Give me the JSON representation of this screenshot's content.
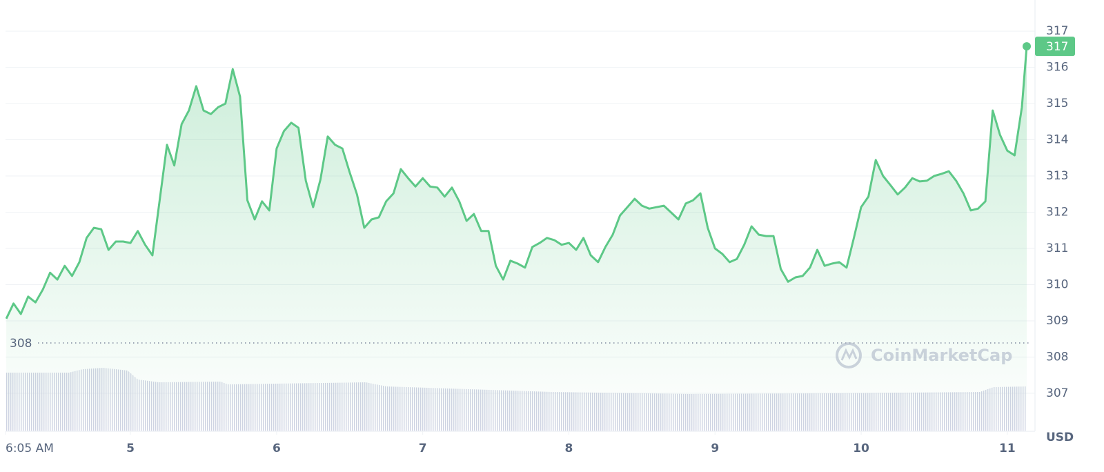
{
  "chart_data": {
    "type": "line",
    "x": [
      4.15,
      4.2,
      4.25,
      4.3,
      4.35,
      4.4,
      4.45,
      4.5,
      4.55,
      4.6,
      4.65,
      4.7,
      4.75,
      4.8,
      4.85,
      4.9,
      4.95,
      5,
      5.05,
      5.1,
      5.15,
      5.2,
      5.25,
      5.3,
      5.35,
      5.4,
      5.45,
      5.5,
      5.55,
      5.6,
      5.65,
      5.7,
      5.75,
      5.8,
      5.85,
      5.9,
      5.95,
      6,
      6.05,
      6.1,
      6.15,
      6.2,
      6.25,
      6.3,
      6.35,
      6.4,
      6.45,
      6.5,
      6.55,
      6.6,
      6.65,
      6.7,
      6.75,
      6.8,
      6.85,
      6.9,
      6.95,
      7,
      7.05,
      7.1,
      7.15,
      7.2,
      7.25,
      7.3,
      7.35,
      7.4,
      7.45,
      7.5,
      7.55,
      7.6,
      7.65,
      7.7,
      7.75,
      7.8,
      7.85,
      7.9,
      7.95,
      8,
      8.05,
      8.1,
      8.15,
      8.2,
      8.25,
      8.3,
      8.35,
      8.4,
      8.45,
      8.5,
      8.55,
      8.6,
      8.65,
      8.7,
      8.75,
      8.8,
      8.85,
      8.9,
      8.95,
      9,
      9.05,
      9.1,
      9.15,
      9.2,
      9.25,
      9.3,
      9.35,
      9.4,
      9.45,
      9.5,
      9.55,
      9.6,
      9.65,
      9.7,
      9.75,
      9.8,
      9.85,
      9.9,
      9.95,
      10,
      10.05,
      10.1,
      10.15,
      10.2,
      10.25,
      10.3,
      10.35,
      10.4,
      10.45,
      10.5,
      10.55,
      10.6,
      10.65,
      10.7,
      10.75,
      10.8,
      10.85,
      10.9,
      10.95,
      11,
      11.05,
      11.1,
      11.133
    ],
    "series": [
      {
        "color": "#5dc887",
        "values": [
          309.06,
          309.48,
          309.19,
          309.67,
          309.51,
          309.86,
          310.33,
          310.14,
          310.52,
          310.24,
          310.62,
          311.29,
          311.57,
          311.53,
          310.96,
          311.19,
          311.19,
          311.15,
          311.48,
          311.1,
          310.81,
          312.33,
          313.86,
          313.29,
          314.43,
          314.81,
          315.48,
          314.81,
          314.71,
          314.9,
          315,
          315.95,
          315.19,
          312.33,
          311.8,
          312.3,
          312.05,
          313.76,
          314.24,
          314.47,
          314.33,
          312.87,
          312.14,
          312.9,
          314.09,
          313.86,
          313.76,
          313.1,
          312.49,
          311.57,
          311.8,
          311.86,
          312.3,
          312.52,
          313.19,
          312.94,
          312.71,
          312.94,
          312.71,
          312.68,
          312.43,
          312.68,
          312.3,
          311.76,
          311.95,
          311.48,
          311.48,
          310.52,
          310.14,
          310.66,
          310.58,
          310.47,
          311.04,
          311.15,
          311.29,
          311.23,
          311.1,
          311.15,
          310.96,
          311.29,
          310.81,
          310.62,
          311.04,
          311.38,
          311.91,
          312.14,
          312.37,
          312.18,
          312.1,
          312.14,
          312.18,
          311.99,
          311.8,
          312.24,
          312.33,
          312.52,
          311.57,
          311,
          310.85,
          310.62,
          310.71,
          311.1,
          311.61,
          311.38,
          311.34,
          311.34,
          310.43,
          310.08,
          310.2,
          310.24,
          310.47,
          310.96,
          310.52,
          310.58,
          310.62,
          310.47,
          311.29,
          312.14,
          312.43,
          313.44,
          313,
          312.75,
          312.49,
          312.68,
          312.94,
          312.85,
          312.87,
          313,
          313.06,
          313.13,
          312.87,
          312.52,
          312.05,
          312.1,
          312.3,
          314.81,
          314.14,
          313.7,
          313.57,
          314.9,
          316.58
        ]
      }
    ],
    "xlim": [
      4.145,
      11.133
    ],
    "xticks": [
      {
        "value": 4.145,
        "label": "6:05 AM"
      },
      5,
      6,
      7,
      8,
      9,
      10,
      11
    ],
    "ylim": [
      305.95,
      317.86
    ],
    "yticks": [
      307,
      308,
      309,
      310,
      311,
      312,
      313,
      314,
      315,
      316,
      317
    ],
    "grid": true,
    "axis_unit": "USD",
    "open_price": {
      "value": 308.39,
      "label": "308"
    },
    "last_price": {
      "value": 316.58,
      "label": "317"
    },
    "watermark": "CoinMarketCap"
  }
}
